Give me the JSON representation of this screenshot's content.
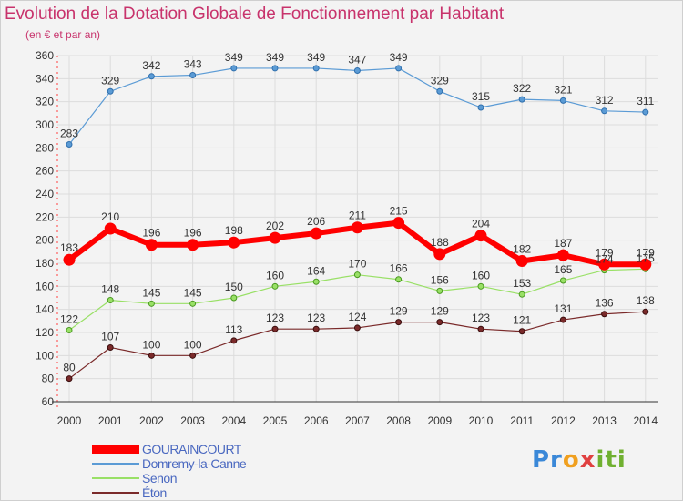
{
  "title": "Evolution de la Dotation Globale de Fonctionnement par Habitant",
  "subtitle": "(en € et par an)",
  "logo": {
    "text": "Proxiti",
    "parts": [
      "Pr",
      "o",
      "x",
      "iti"
    ]
  },
  "chart_data": {
    "type": "line",
    "title": "Evolution de la Dotation Globale de Fonctionnement par Habitant",
    "subtitle": "(en € et par an)",
    "xlabel": "",
    "ylabel": "",
    "x": [
      "2000",
      "2001",
      "2002",
      "2003",
      "2004",
      "2005",
      "2006",
      "2007",
      "2008",
      "2009",
      "2010",
      "2011",
      "2012",
      "2013",
      "2014"
    ],
    "ylim": [
      60,
      360
    ],
    "yticks": [
      60,
      80,
      100,
      120,
      140,
      160,
      180,
      200,
      220,
      240,
      260,
      280,
      300,
      320,
      340,
      360
    ],
    "grid": true,
    "legend_position": "bottom-left",
    "series": [
      {
        "name": "GOURAINCOURT",
        "color": "#ff0000",
        "values": [
          183,
          210,
          196,
          196,
          198,
          202,
          206,
          211,
          215,
          188,
          204,
          182,
          187,
          179,
          179
        ]
      },
      {
        "name": "Domremy-la-Canne",
        "color": "#5b9bd5",
        "values": [
          283,
          329,
          342,
          343,
          349,
          349,
          349,
          347,
          349,
          329,
          315,
          322,
          321,
          312,
          311
        ]
      },
      {
        "name": "Senon",
        "color": "#99e066",
        "values": [
          122,
          148,
          145,
          145,
          150,
          160,
          164,
          170,
          166,
          156,
          160,
          153,
          165,
          174,
          175
        ]
      },
      {
        "name": "Éton",
        "color": "#7a2a2a",
        "values": [
          80,
          107,
          100,
          100,
          113,
          123,
          123,
          124,
          129,
          129,
          123,
          121,
          131,
          136,
          138
        ]
      }
    ]
  }
}
